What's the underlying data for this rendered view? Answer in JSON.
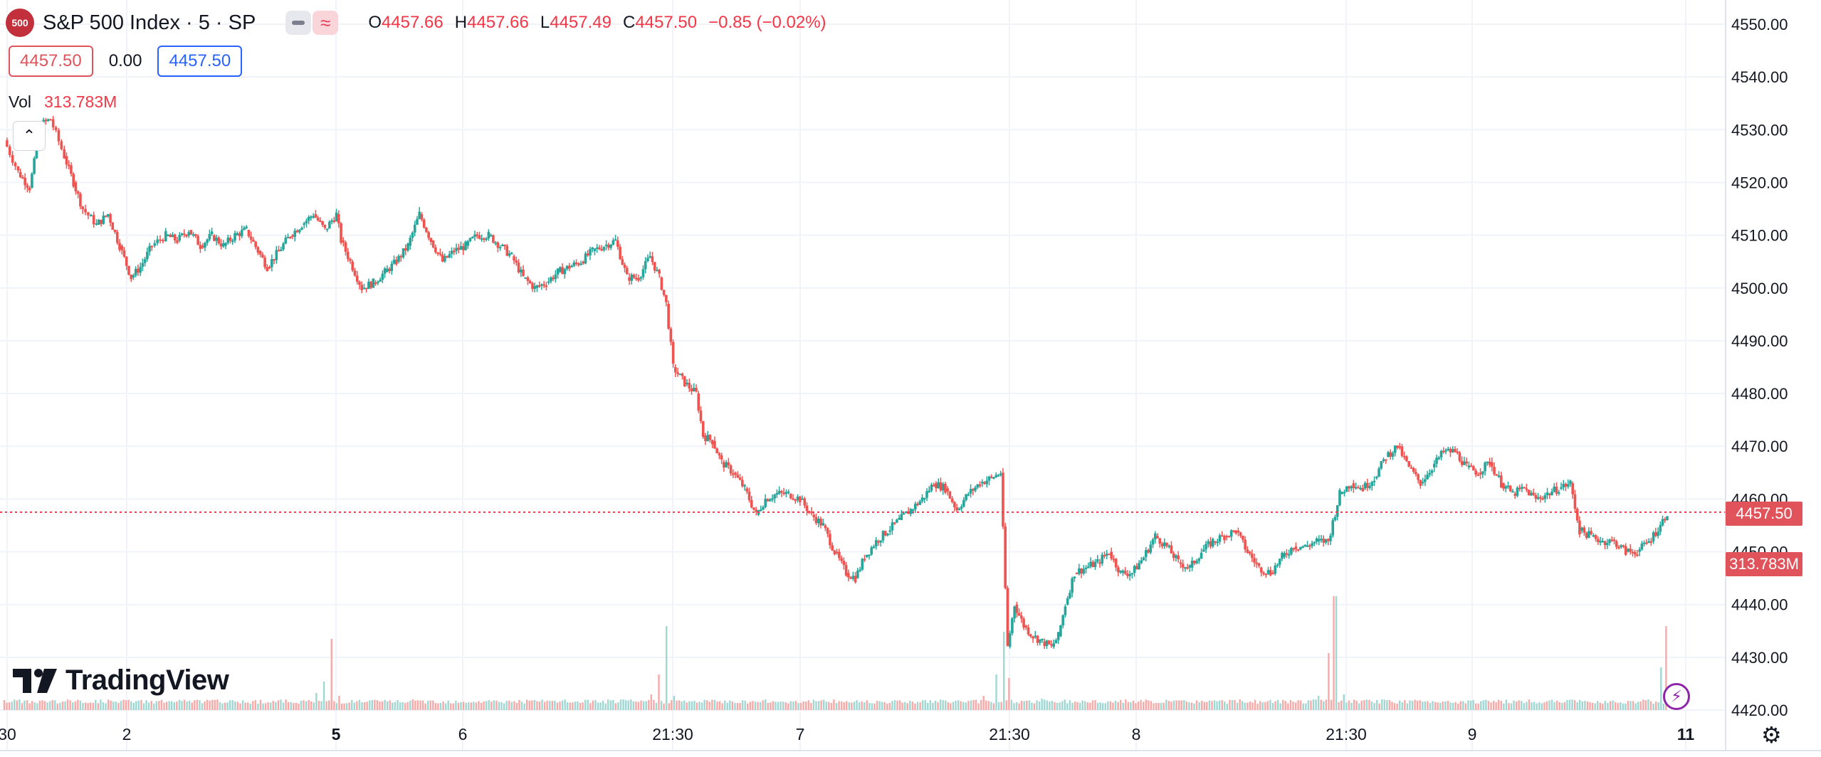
{
  "header": {
    "symbol_badge": "500",
    "title": "S&P 500 Index · 5 · SP",
    "ohlc": [
      {
        "key": "O",
        "value": "4457.66"
      },
      {
        "key": "H",
        "value": "4457.66"
      },
      {
        "key": "L",
        "value": "4457.49"
      },
      {
        "key": "C",
        "value": "4457.50"
      }
    ],
    "change": "−0.85 (−0.02%)"
  },
  "trade": {
    "sell": "4457.50",
    "spread": "0.00",
    "buy": "4457.50"
  },
  "volume_legend": {
    "label": "Vol",
    "value": "313.783M"
  },
  "brand": {
    "name": "TradingView"
  },
  "price_tags": {
    "last_price": "4457.50",
    "last_volume": "313.783M"
  },
  "colors": {
    "up": "#26a69a",
    "down": "#ef5350",
    "accent": "#2962ff",
    "grid": "#f0f3fa"
  },
  "chart_data": {
    "type": "candlestick",
    "title": "S&P 500 Index · 5 · SP",
    "y_axis": {
      "ticks": [
        "4550.00",
        "4540.00",
        "4530.00",
        "4520.00",
        "4510.00",
        "4500.00",
        "4490.00",
        "4480.00",
        "4470.00",
        "4460.00",
        "4450.00",
        "4440.00",
        "4430.00",
        "4420.00"
      ],
      "range": [
        4417,
        4553
      ]
    },
    "x_axis": {
      "ticks": [
        "30",
        "2",
        "5",
        "6",
        "21:30",
        "7",
        "21:30",
        "8",
        "21:30",
        "9",
        "11"
      ]
    },
    "last_price": 4457.5,
    "grid": true,
    "series": [
      {
        "name": "price",
        "path": [
          [
            0,
            4528
          ],
          [
            12,
            4522
          ],
          [
            22,
            4519
          ],
          [
            32,
            4531
          ],
          [
            40,
            4532
          ],
          [
            52,
            4525
          ],
          [
            60,
            4520
          ],
          [
            68,
            4515
          ],
          [
            80,
            4512
          ],
          [
            90,
            4514
          ],
          [
            100,
            4508
          ],
          [
            110,
            4502
          ],
          [
            118,
            4504
          ],
          [
            128,
            4508
          ],
          [
            140,
            4510
          ],
          [
            150,
            4509
          ],
          [
            160,
            4511
          ],
          [
            170,
            4508
          ],
          [
            180,
            4510
          ],
          [
            190,
            4508
          ],
          [
            200,
            4510
          ],
          [
            210,
            4511
          ],
          [
            220,
            4507
          ],
          [
            228,
            4504
          ],
          [
            238,
            4507
          ],
          [
            248,
            4510
          ],
          [
            258,
            4512
          ],
          [
            268,
            4514
          ],
          [
            278,
            4511
          ],
          [
            288,
            4514
          ],
          [
            292,
            4509
          ],
          [
            300,
            4505
          ],
          [
            310,
            4500
          ],
          [
            320,
            4501
          ],
          [
            330,
            4503
          ],
          [
            340,
            4505
          ],
          [
            350,
            4508
          ],
          [
            360,
            4514
          ],
          [
            370,
            4509
          ],
          [
            380,
            4505
          ],
          [
            390,
            4507
          ],
          [
            400,
            4508
          ],
          [
            410,
            4510
          ],
          [
            420,
            4510
          ],
          [
            430,
            4508
          ],
          [
            440,
            4506
          ],
          [
            450,
            4502
          ],
          [
            460,
            4500
          ],
          [
            470,
            4501
          ],
          [
            480,
            4503
          ],
          [
            490,
            4504
          ],
          [
            500,
            4505
          ],
          [
            510,
            4507
          ],
          [
            520,
            4508
          ],
          [
            530,
            4509
          ],
          [
            540,
            4502
          ],
          [
            550,
            4502
          ],
          [
            560,
            4506
          ],
          [
            568,
            4502
          ],
          [
            574,
            4497
          ],
          [
            580,
            4485
          ],
          [
            590,
            4482
          ],
          [
            600,
            4480
          ],
          [
            606,
            4472
          ],
          [
            614,
            4471
          ],
          [
            622,
            4467
          ],
          [
            632,
            4465
          ],
          [
            642,
            4462
          ],
          [
            652,
            4457
          ],
          [
            660,
            4460
          ],
          [
            670,
            4461
          ],
          [
            680,
            4461
          ],
          [
            690,
            4460
          ],
          [
            700,
            4457
          ],
          [
            710,
            4455
          ],
          [
            720,
            4450
          ],
          [
            730,
            4446
          ],
          [
            738,
            4445
          ],
          [
            746,
            4449
          ],
          [
            756,
            4452
          ],
          [
            766,
            4454
          ],
          [
            776,
            4456
          ],
          [
            786,
            4458
          ],
          [
            796,
            4460
          ],
          [
            806,
            4463
          ],
          [
            816,
            4462
          ],
          [
            826,
            4458
          ],
          [
            836,
            4461
          ],
          [
            846,
            4463
          ],
          [
            856,
            4464
          ],
          [
            864,
            4465
          ],
          [
            870,
            4432
          ],
          [
            876,
            4440
          ],
          [
            884,
            4436
          ],
          [
            892,
            4434
          ],
          [
            900,
            4433
          ],
          [
            908,
            4432
          ],
          [
            914,
            4434
          ],
          [
            920,
            4440
          ],
          [
            928,
            4446
          ],
          [
            938,
            4447
          ],
          [
            948,
            4448
          ],
          [
            958,
            4450
          ],
          [
            968,
            4446
          ],
          [
            978,
            4446
          ],
          [
            988,
            4449
          ],
          [
            998,
            4453
          ],
          [
            1008,
            4451
          ],
          [
            1018,
            4448
          ],
          [
            1028,
            4447
          ],
          [
            1038,
            4450
          ],
          [
            1048,
            4452
          ],
          [
            1058,
            4453
          ],
          [
            1068,
            4454
          ],
          [
            1078,
            4450
          ],
          [
            1088,
            4447
          ],
          [
            1098,
            4446
          ],
          [
            1108,
            4449
          ],
          [
            1118,
            4451
          ],
          [
            1128,
            4451
          ],
          [
            1138,
            4452
          ],
          [
            1148,
            4452
          ],
          [
            1158,
            4461
          ],
          [
            1168,
            4463
          ],
          [
            1178,
            4462
          ],
          [
            1188,
            4464
          ],
          [
            1198,
            4468
          ],
          [
            1208,
            4470
          ],
          [
            1218,
            4466
          ],
          [
            1228,
            4463
          ],
          [
            1238,
            4466
          ],
          [
            1248,
            4469
          ],
          [
            1258,
            4469
          ],
          [
            1268,
            4466
          ],
          [
            1278,
            4465
          ],
          [
            1288,
            4467
          ],
          [
            1298,
            4463
          ],
          [
            1308,
            4461
          ],
          [
            1318,
            4462
          ],
          [
            1328,
            4460
          ],
          [
            1338,
            4461
          ],
          [
            1348,
            4462
          ],
          [
            1358,
            4463
          ],
          [
            1366,
            4454
          ],
          [
            1376,
            4453
          ],
          [
            1386,
            4452
          ],
          [
            1396,
            4452
          ],
          [
            1406,
            4450
          ],
          [
            1416,
            4450
          ],
          [
            1426,
            4452
          ],
          [
            1436,
            4455
          ],
          [
            1442,
            4457.5
          ]
        ]
      },
      {
        "name": "volume",
        "bars": [
          [
            0,
            14
          ],
          [
            100,
            10
          ],
          [
            200,
            12
          ],
          [
            270,
            24
          ],
          [
            278,
            40
          ],
          [
            284,
            100
          ],
          [
            290,
            20
          ],
          [
            400,
            10
          ],
          [
            500,
            10
          ],
          [
            560,
            22
          ],
          [
            568,
            50
          ],
          [
            574,
            118
          ],
          [
            580,
            20
          ],
          [
            700,
            10
          ],
          [
            800,
            10
          ],
          [
            850,
            20
          ],
          [
            860,
            50
          ],
          [
            866,
            110
          ],
          [
            872,
            45
          ],
          [
            900,
            16
          ],
          [
            1000,
            10
          ],
          [
            1100,
            10
          ],
          [
            1140,
            20
          ],
          [
            1148,
            80
          ],
          [
            1154,
            160
          ],
          [
            1162,
            22
          ],
          [
            1250,
            12
          ],
          [
            1350,
            10
          ],
          [
            1420,
            12
          ],
          [
            1436,
            60
          ],
          [
            1442,
            118
          ]
        ]
      }
    ]
  }
}
